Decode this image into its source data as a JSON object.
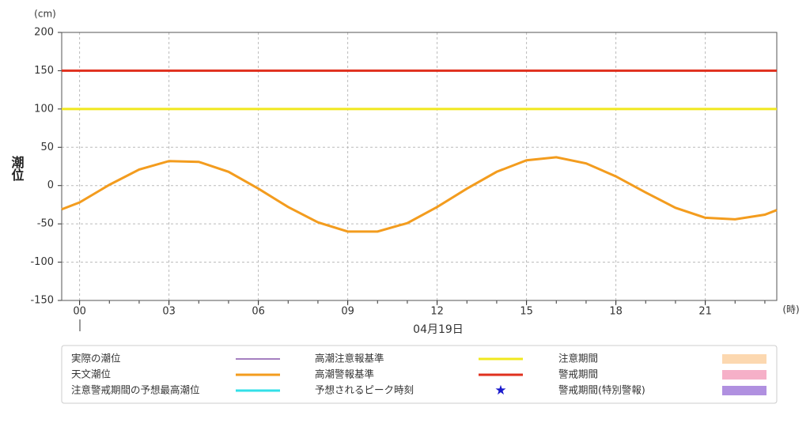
{
  "chart_data": {
    "type": "line",
    "y_label": "潮位",
    "y_unit": "(cm)",
    "x_unit": "(時)",
    "date_label": "04月19日",
    "x": [
      -0.6,
      0,
      1,
      2,
      3,
      4,
      5,
      6,
      7,
      8,
      9,
      10,
      11,
      12,
      13,
      14,
      15,
      16,
      17,
      18,
      19,
      20,
      21,
      22,
      23,
      23.4
    ],
    "series": [
      {
        "name": "天文潮位",
        "color": "#f39c1e",
        "values": [
          -31,
          -22,
          1,
          21,
          32,
          31,
          18,
          -4,
          -28,
          -48,
          -60,
          -60,
          -49,
          -28,
          -4,
          18,
          33,
          37,
          29,
          12,
          -9,
          -29,
          -42,
          -44,
          -38,
          -32
        ]
      }
    ],
    "thresholds": [
      {
        "name": "高潮注意報基準",
        "value": 100,
        "color": "#f0e81e"
      },
      {
        "name": "高潮警報基準",
        "value": 150,
        "color": "#e0301e"
      }
    ],
    "legend_extra": [
      {
        "name": "実際の潮位",
        "color": "#4b0082",
        "symbol": "thin-line"
      },
      {
        "name": "注意警戒期間の予想最高潮位",
        "color": "#33e0e8",
        "symbol": "line"
      },
      {
        "name": "予想されるピーク時刻",
        "color": "#1a1acc",
        "symbol": "star"
      },
      {
        "name": "注意期間",
        "color": "#fcd8b0",
        "symbol": "box"
      },
      {
        "name": "警戒期間",
        "color": "#f6b0c8",
        "symbol": "box"
      },
      {
        "name": "警戒期間(特別警報)",
        "color": "#b090e0",
        "symbol": "box"
      }
    ],
    "xlim": [
      -0.6,
      23.4
    ],
    "ylim": [
      -150,
      200
    ],
    "xticks": [
      {
        "value": 0,
        "label": "00"
      },
      {
        "value": 3,
        "label": "03"
      },
      {
        "value": 6,
        "label": "06"
      },
      {
        "value": 9,
        "label": "09"
      },
      {
        "value": 12,
        "label": "12"
      },
      {
        "value": 15,
        "label": "15"
      },
      {
        "value": 18,
        "label": "18"
      },
      {
        "value": 21,
        "label": "21"
      }
    ],
    "yticks": [
      -150,
      -100,
      -50,
      0,
      50,
      100,
      150,
      200
    ],
    "grid": true
  }
}
